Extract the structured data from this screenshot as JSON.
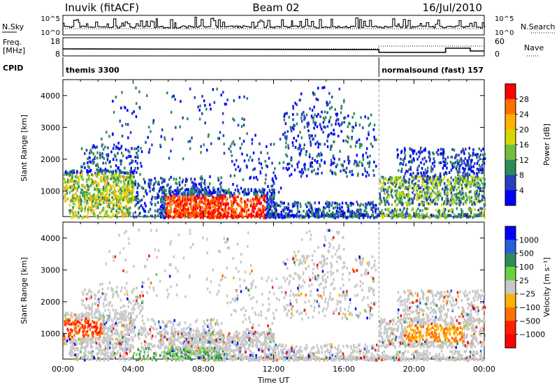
{
  "header": {
    "station": "Inuvik (fitACF)",
    "beam": "Beam 02",
    "date": "16/Jul/2010"
  },
  "panels": {
    "nsky_label": "N.Sky",
    "nsearch_label": "N.Search",
    "freq_label_line1": "Freq.",
    "freq_label_line2": "[MHz]",
    "nave_label": "Nave",
    "cpid_label": "CPID",
    "nsky_ticks": [
      "10^5",
      "10^0"
    ],
    "nsearch_ticks": [
      "10^5",
      "10^0"
    ],
    "freq_ticks": [
      "18",
      "8"
    ],
    "nave_ticks": [
      "60",
      "0"
    ],
    "cpid_segments": [
      {
        "label": "themis 3300",
        "start_hour": 0,
        "end_hour": 18
      },
      {
        "label": "normalsound (fast) 157",
        "start_hour": 18,
        "end_hour": 24
      }
    ]
  },
  "chart_data": [
    {
      "type": "heatmap",
      "name": "power",
      "ylabel": "Slant Range [km]",
      "xlim_hours": [
        0,
        24
      ],
      "ylim_km": [
        200,
        4500
      ],
      "yticks": [
        1000,
        2000,
        3000,
        4000
      ],
      "colorbar": {
        "label": "Power [dB]",
        "ticks": [
          4,
          8,
          12,
          16,
          20,
          24,
          28
        ],
        "colors": [
          "#0000ff",
          "#2a3fbf",
          "#2e8b57",
          "#6fbf40",
          "#d8d800",
          "#ffb000",
          "#ff7000",
          "#ff0000"
        ]
      }
    },
    {
      "type": "heatmap",
      "name": "velocity",
      "ylabel": "Slant Range [km]",
      "xlabel": "Time UT",
      "xlim_hours": [
        0,
        24
      ],
      "ylim_km": [
        200,
        4500
      ],
      "yticks": [
        1000,
        2000,
        3000,
        4000
      ],
      "xticks": [
        "00:00",
        "04:00",
        "08:00",
        "12:00",
        "16:00",
        "20:00",
        "00:00"
      ],
      "colorbar": {
        "label": "Velocity [m s⁻¹]",
        "ticks": [
          "1000",
          "500",
          "100",
          "25",
          "−25",
          "−100",
          "−500",
          "−1000"
        ],
        "colors": [
          "#0000ff",
          "#2a5fd8",
          "#2e8b57",
          "#6fcf40",
          "#c8c8c8",
          "#ffb000",
          "#ff7000",
          "#ff2000",
          "#ff0000"
        ]
      }
    }
  ]
}
